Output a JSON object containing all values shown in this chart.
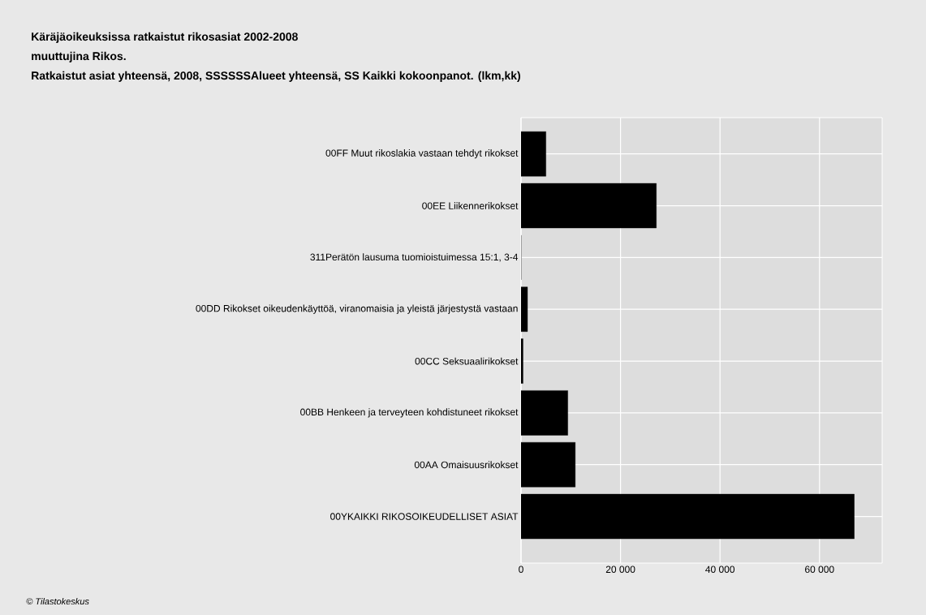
{
  "chart_data": {
    "type": "bar",
    "orientation": "horizontal",
    "title": "Käräjäoikeuksissa ratkaistut rikosasiat 2002-2008",
    "subtitle": "muuttujina Rikos.",
    "annotations": [
      "Ratkaistut asiat yhteensä, 2008, SSSSSSAlueet yhteensä, SS Kaikki kokoonpanot. (lkm,kk)",
      "© Tilastokeskus"
    ],
    "categories": [
      "00FF Muut rikoslakia vastaan tehdyt rikokset",
      "00EE Liikennerikokset",
      "311Perätön lausuma tuomioistuimessa 15:1, 3-4",
      "00DD Rikokset oikeudenkäyttöä, viranomaisia ja yleistä järjestystä vastaan",
      "00CC Seksuaalirikokset",
      "00BB Henkeen ja terveyteen kohdistuneet rikokset",
      "00AA Omaisuusrikokset",
      "00YKAIKKI RIKOSOIKEUDELLISET ASIAT"
    ],
    "values": [
      5000,
      27200,
      0,
      1300,
      400,
      9400,
      10900,
      67000
    ],
    "color": "#000000",
    "xlim": [
      0,
      72600
    ],
    "xticks": [
      0,
      {
        "value": 20000,
        "label": "20 000"
      },
      {
        "value": 40000,
        "label": "40 000"
      },
      {
        "value": 60000,
        "label": "60 000"
      }
    ],
    "grid": true
  }
}
